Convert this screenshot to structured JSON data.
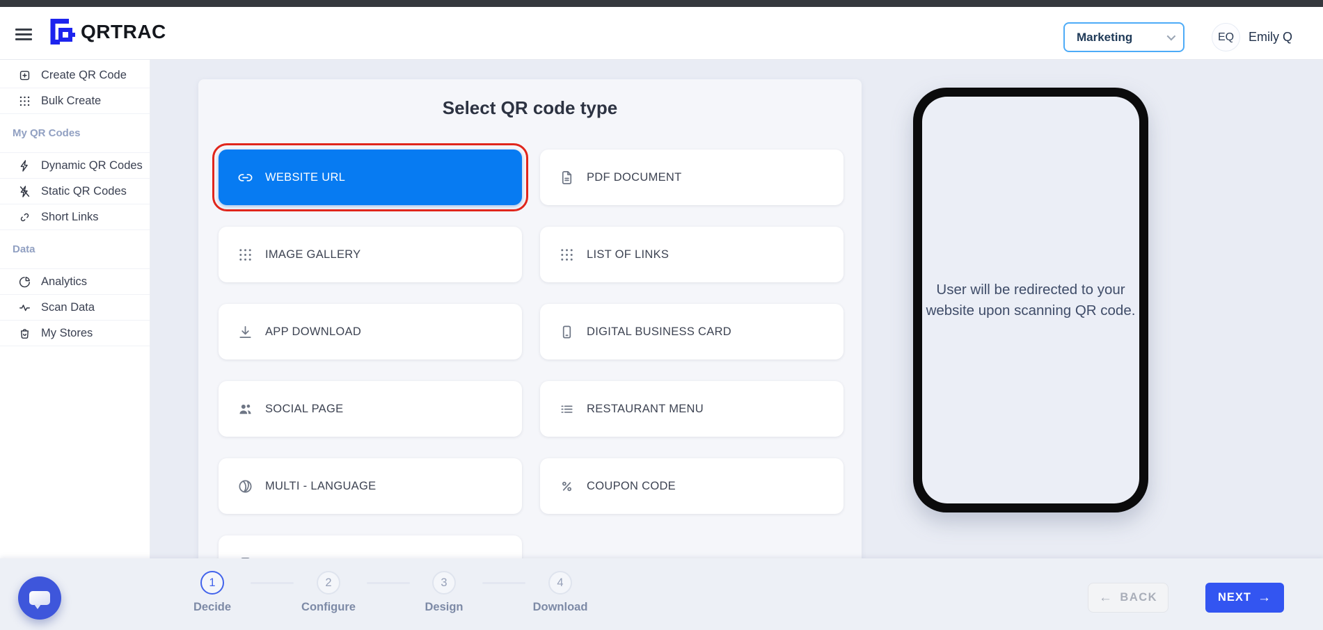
{
  "colors": {
    "selected_tile_blue": "#077bf2",
    "next_button_blue": "#3355f1",
    "annotation_red": "#e0261c",
    "workspace_border_blue": "#4dabf7",
    "active_step_blue": "#4263eb",
    "page_background": "#e9ecf4"
  },
  "header": {
    "brand": "QRTRAC",
    "menu_icon": "hamburger-icon",
    "workspace_selected": "Marketing",
    "user_initials": "EQ",
    "user_name": "Emily Q"
  },
  "sidebar": {
    "sections": [
      {
        "heading": "",
        "items": [
          {
            "icon": "create-qr-icon",
            "label": "Create QR Code"
          },
          {
            "icon": "grid-dots-icon",
            "label": "Bulk Create"
          }
        ]
      },
      {
        "heading": "My QR Codes",
        "items": [
          {
            "icon": "dynamic-bolt-icon",
            "label": "Dynamic QR Codes"
          },
          {
            "icon": "static-bolt-off-icon",
            "label": "Static QR Codes"
          },
          {
            "icon": "short-links-icon",
            "label": "Short Links"
          }
        ]
      },
      {
        "heading": "Data",
        "items": [
          {
            "icon": "analytics-pie-icon",
            "label": "Analytics"
          },
          {
            "icon": "scan-activity-icon",
            "label": "Scan Data"
          },
          {
            "icon": "stores-bag-icon",
            "label": "My Stores"
          }
        ]
      }
    ]
  },
  "main": {
    "title": "Select QR code type",
    "qr_types": [
      {
        "icon": "link-icon",
        "label": "WEBSITE URL",
        "selected": true,
        "annotated": true
      },
      {
        "icon": "document-icon",
        "label": "PDF DOCUMENT",
        "selected": false
      },
      {
        "icon": "grid-dots-icon",
        "label": "IMAGE GALLERY",
        "selected": false
      },
      {
        "icon": "grid-dots-icon",
        "label": "LIST OF LINKS",
        "selected": false
      },
      {
        "icon": "download-icon",
        "label": "APP DOWNLOAD",
        "selected": false
      },
      {
        "icon": "business-card-icon",
        "label": "DIGITAL BUSINESS CARD",
        "selected": false
      },
      {
        "icon": "people-icon",
        "label": "SOCIAL PAGE",
        "selected": false
      },
      {
        "icon": "menu-lines-icon",
        "label": "RESTAURANT MENU",
        "selected": false
      },
      {
        "icon": "globe-icon",
        "label": "MULTI - LANGUAGE",
        "selected": false
      },
      {
        "icon": "percent-icon",
        "label": "COUPON CODE",
        "selected": false
      },
      {
        "icon": "card-outline-icon",
        "label": "",
        "selected": false,
        "partial": true
      }
    ],
    "preview_message": "User will be redirected to your website upon scanning QR code."
  },
  "footer": {
    "steps": [
      {
        "number": "1",
        "label": "Decide",
        "active": true
      },
      {
        "number": "2",
        "label": "Configure",
        "active": false
      },
      {
        "number": "3",
        "label": "Design",
        "active": false
      },
      {
        "number": "4",
        "label": "Download",
        "active": false
      }
    ],
    "back_label": "BACK",
    "next_label": "NEXT"
  }
}
